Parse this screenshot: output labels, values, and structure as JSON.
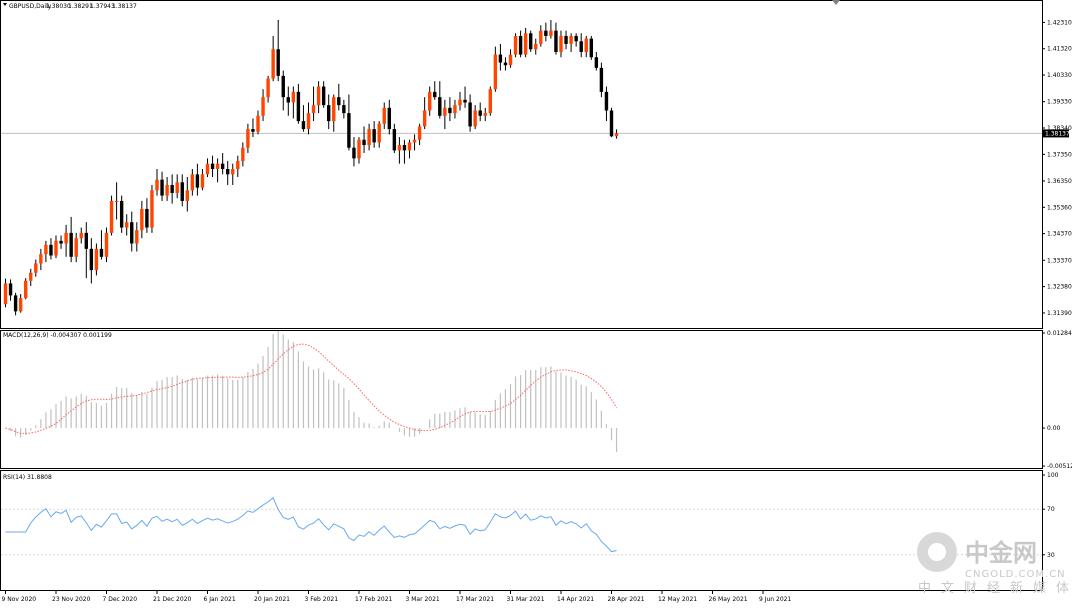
{
  "chart_data": [
    {
      "type": "candlestick",
      "title": "GBPUSD,Daily",
      "ohlc_header": [
        "1.38030",
        "1.38291",
        "1.37943",
        "1.38137"
      ],
      "ylim": [
        1.309,
        1.427
      ],
      "y_ticks": [
        "1.42310",
        "1.41320",
        "1.40330",
        "1.39330",
        "1.38340",
        "1.37350",
        "1.36350",
        "1.35360",
        "1.34370",
        "1.33370",
        "1.32380",
        "1.31390"
      ],
      "current_price": "1.38137",
      "colors": {
        "up": "#ff4500",
        "down": "#000000",
        "wick": "#000000",
        "price_line": "#c0c0c0"
      },
      "candles": [
        [
          1.3172,
          1.3268,
          1.316,
          1.325
        ],
        [
          1.325,
          1.3265,
          1.3185,
          1.3205
        ],
        [
          1.3205,
          1.3215,
          1.313,
          1.3145
        ],
        [
          1.3145,
          1.321,
          1.314,
          1.3195
        ],
        [
          1.3195,
          1.327,
          1.319,
          1.326
        ],
        [
          1.326,
          1.3305,
          1.324,
          1.329
        ],
        [
          1.329,
          1.334,
          1.3275,
          1.3325
        ],
        [
          1.3325,
          1.338,
          1.33,
          1.336
        ],
        [
          1.336,
          1.341,
          1.333,
          1.3395
        ],
        [
          1.3395,
          1.342,
          1.334,
          1.3355
        ],
        [
          1.3355,
          1.343,
          1.3345,
          1.341
        ],
        [
          1.341,
          1.343,
          1.338,
          1.34
        ],
        [
          1.34,
          1.347,
          1.335,
          1.344
        ],
        [
          1.344,
          1.35,
          1.333,
          1.335
        ],
        [
          1.335,
          1.344,
          1.333,
          1.342
        ],
        [
          1.342,
          1.346,
          1.34,
          1.344
        ],
        [
          1.344,
          1.348,
          1.327,
          1.338
        ],
        [
          1.338,
          1.342,
          1.325,
          1.33
        ],
        [
          1.33,
          1.34,
          1.328,
          1.338
        ],
        [
          1.338,
          1.345,
          1.334,
          1.335
        ],
        [
          1.335,
          1.346,
          1.333,
          1.344
        ],
        [
          1.344,
          1.358,
          1.343,
          1.356
        ],
        [
          1.356,
          1.363,
          1.349,
          1.356
        ],
        [
          1.356,
          1.358,
          1.344,
          1.346
        ],
        [
          1.346,
          1.351,
          1.343,
          1.348
        ],
        [
          1.348,
          1.352,
          1.337,
          1.34
        ],
        [
          1.34,
          1.348,
          1.337,
          1.345
        ],
        [
          1.345,
          1.356,
          1.342,
          1.353
        ],
        [
          1.353,
          1.357,
          1.344,
          1.346
        ],
        [
          1.346,
          1.362,
          1.344,
          1.36
        ],
        [
          1.36,
          1.368,
          1.358,
          1.364
        ],
        [
          1.364,
          1.367,
          1.356,
          1.358
        ],
        [
          1.358,
          1.365,
          1.356,
          1.362
        ],
        [
          1.362,
          1.366,
          1.355,
          1.359
        ],
        [
          1.359,
          1.366,
          1.357,
          1.363
        ],
        [
          1.363,
          1.366,
          1.354,
          1.356
        ],
        [
          1.356,
          1.365,
          1.352,
          1.36
        ],
        [
          1.36,
          1.368,
          1.358,
          1.366
        ],
        [
          1.366,
          1.37,
          1.358,
          1.361
        ],
        [
          1.361,
          1.368,
          1.36,
          1.366
        ],
        [
          1.366,
          1.372,
          1.365,
          1.37
        ],
        [
          1.37,
          1.373,
          1.365,
          1.368
        ],
        [
          1.368,
          1.372,
          1.363,
          1.37
        ],
        [
          1.37,
          1.374,
          1.366,
          1.368
        ],
        [
          1.368,
          1.371,
          1.362,
          1.366
        ],
        [
          1.366,
          1.37,
          1.362,
          1.368
        ],
        [
          1.368,
          1.373,
          1.365,
          1.371
        ],
        [
          1.371,
          1.378,
          1.369,
          1.376
        ],
        [
          1.376,
          1.385,
          1.374,
          1.383
        ],
        [
          1.383,
          1.387,
          1.38,
          1.382
        ],
        [
          1.382,
          1.39,
          1.381,
          1.388
        ],
        [
          1.388,
          1.398,
          1.386,
          1.395
        ],
        [
          1.395,
          1.403,
          1.393,
          1.402
        ],
        [
          1.402,
          1.418,
          1.401,
          1.413
        ],
        [
          1.413,
          1.424,
          1.401,
          1.403
        ],
        [
          1.403,
          1.405,
          1.39,
          1.395
        ],
        [
          1.395,
          1.399,
          1.388,
          1.393
        ],
        [
          1.393,
          1.399,
          1.387,
          1.397
        ],
        [
          1.397,
          1.4,
          1.385,
          1.386
        ],
        [
          1.386,
          1.392,
          1.382,
          1.383
        ],
        [
          1.383,
          1.393,
          1.381,
          1.389
        ],
        [
          1.389,
          1.399,
          1.386,
          1.392
        ],
        [
          1.392,
          1.401,
          1.389,
          1.399
        ],
        [
          1.399,
          1.401,
          1.391,
          1.392
        ],
        [
          1.392,
          1.396,
          1.383,
          1.386
        ],
        [
          1.386,
          1.396,
          1.382,
          1.395
        ],
        [
          1.395,
          1.4,
          1.39,
          1.392
        ],
        [
          1.392,
          1.394,
          1.387,
          1.389
        ],
        [
          1.389,
          1.396,
          1.375,
          1.376
        ],
        [
          1.376,
          1.38,
          1.369,
          1.372
        ],
        [
          1.372,
          1.38,
          1.37,
          1.379
        ],
        [
          1.379,
          1.384,
          1.374,
          1.377
        ],
        [
          1.377,
          1.385,
          1.375,
          1.383
        ],
        [
          1.383,
          1.386,
          1.376,
          1.378
        ],
        [
          1.378,
          1.386,
          1.376,
          1.385
        ],
        [
          1.385,
          1.393,
          1.383,
          1.391
        ],
        [
          1.391,
          1.394,
          1.381,
          1.383
        ],
        [
          1.383,
          1.385,
          1.374,
          1.375
        ],
        [
          1.375,
          1.38,
          1.37,
          1.377
        ],
        [
          1.377,
          1.379,
          1.37,
          1.375
        ],
        [
          1.375,
          1.379,
          1.372,
          1.378
        ],
        [
          1.378,
          1.381,
          1.375,
          1.379
        ],
        [
          1.379,
          1.385,
          1.377,
          1.384
        ],
        [
          1.384,
          1.395,
          1.383,
          1.39
        ],
        [
          1.39,
          1.399,
          1.388,
          1.397
        ],
        [
          1.397,
          1.401,
          1.394,
          1.395
        ],
        [
          1.395,
          1.401,
          1.387,
          1.388
        ],
        [
          1.388,
          1.394,
          1.383,
          1.391
        ],
        [
          1.391,
          1.395,
          1.386,
          1.389
        ],
        [
          1.389,
          1.394,
          1.387,
          1.392
        ],
        [
          1.392,
          1.397,
          1.39,
          1.394
        ],
        [
          1.394,
          1.399,
          1.391,
          1.393
        ],
        [
          1.393,
          1.396,
          1.382,
          1.384
        ],
        [
          1.384,
          1.392,
          1.383,
          1.39
        ],
        [
          1.39,
          1.393,
          1.386,
          1.388
        ],
        [
          1.388,
          1.391,
          1.386,
          1.389
        ],
        [
          1.389,
          1.399,
          1.388,
          1.398
        ],
        [
          1.398,
          1.414,
          1.397,
          1.411
        ],
        [
          1.411,
          1.415,
          1.405,
          1.408
        ],
        [
          1.408,
          1.41,
          1.405,
          1.407
        ],
        [
          1.407,
          1.413,
          1.406,
          1.411
        ],
        [
          1.411,
          1.419,
          1.41,
          1.418
        ],
        [
          1.418,
          1.42,
          1.41,
          1.411
        ],
        [
          1.411,
          1.421,
          1.41,
          1.419
        ],
        [
          1.419,
          1.42,
          1.412,
          1.413
        ],
        [
          1.413,
          1.417,
          1.411,
          1.415
        ],
        [
          1.415,
          1.422,
          1.414,
          1.42
        ],
        [
          1.42,
          1.423,
          1.416,
          1.418
        ],
        [
          1.418,
          1.424,
          1.417,
          1.42
        ],
        [
          1.42,
          1.423,
          1.411,
          1.412
        ],
        [
          1.412,
          1.42,
          1.41,
          1.418
        ],
        [
          1.418,
          1.42,
          1.413,
          1.415
        ],
        [
          1.415,
          1.419,
          1.412,
          1.418
        ],
        [
          1.418,
          1.419,
          1.414,
          1.416
        ],
        [
          1.416,
          1.419,
          1.41,
          1.412
        ],
        [
          1.412,
          1.418,
          1.41,
          1.417
        ],
        [
          1.417,
          1.418,
          1.409,
          1.41
        ],
        [
          1.41,
          1.412,
          1.405,
          1.406
        ],
        [
          1.406,
          1.408,
          1.395,
          1.397
        ],
        [
          1.397,
          1.399,
          1.386,
          1.39
        ],
        [
          1.39,
          1.391,
          1.38,
          1.3803
        ],
        [
          1.3803,
          1.3829,
          1.3794,
          1.3814
        ]
      ]
    },
    {
      "type": "bar",
      "title": "MACD(12,26,9) -0.004307 0.001199",
      "ylim": [
        -0.00512,
        0.01284
      ],
      "y_ticks": [
        "0.012842",
        "0.00",
        "-0.005124"
      ],
      "colors": {
        "histogram": "#c0c0c0",
        "signal": "#ff6060"
      }
    },
    {
      "type": "line",
      "title": "RSI(14) 31.8808",
      "ylim": [
        0,
        100
      ],
      "y_ticks": [
        "100",
        "70",
        "30",
        "0"
      ],
      "colors": {
        "line": "#66aaee",
        "levels": "#c0c0c0"
      }
    }
  ],
  "x_labels": [
    {
      "label": "9 Nov 2020",
      "index": 0
    },
    {
      "label": "23 Nov 2020",
      "index": 10
    },
    {
      "label": "7 Dec 2020",
      "index": 20
    },
    {
      "label": "21 Dec 2020",
      "index": 30
    },
    {
      "label": "6 Jan 2021",
      "index": 40
    },
    {
      "label": "20 Jan 2021",
      "index": 50
    },
    {
      "label": "3 Feb 2021",
      "index": 60
    },
    {
      "label": "17 Feb 2021",
      "index": 70
    },
    {
      "label": "3 Mar 2021",
      "index": 80
    },
    {
      "label": "17 Mar 2021",
      "index": 90
    },
    {
      "label": "31 Mar 2021",
      "index": 100
    },
    {
      "label": "14 Apr 2021",
      "index": 110
    },
    {
      "label": "28 Apr 2021",
      "index": 120
    },
    {
      "label": "12 May 2021",
      "index": 130
    },
    {
      "label": "26 May 2021",
      "index": 140
    },
    {
      "label": "9 Jun 2021",
      "index": 150
    }
  ],
  "watermark": {
    "brand_cn": "中金网",
    "brand_domain": "CNGOLD.COM.CN",
    "brand_slogan": "中文财经新媒体"
  }
}
